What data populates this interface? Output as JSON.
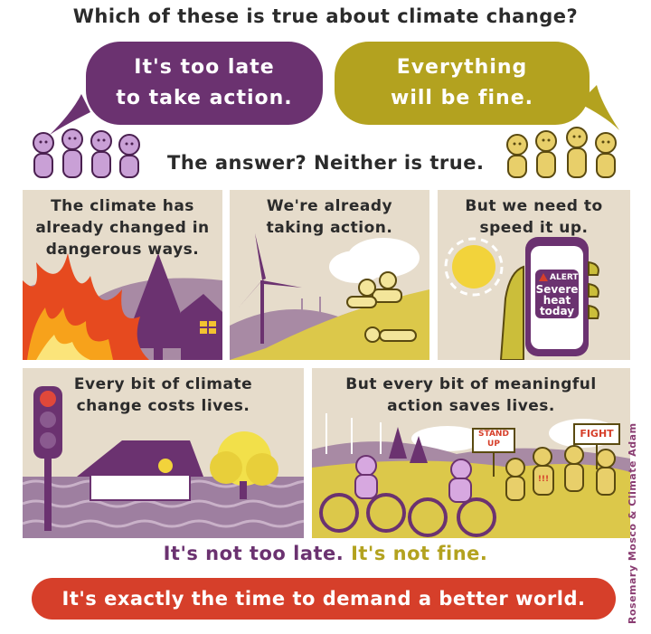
{
  "title": "Which of these is true about climate change?",
  "bubble_left": {
    "line1": "It's too late",
    "line2": "to take action."
  },
  "bubble_right": {
    "line1": "Everything",
    "line2": "will be fine."
  },
  "answer": "The answer? Neither is true.",
  "panels": [
    {
      "lines": [
        "The climate has",
        "already changed in",
        "dangerous ways."
      ]
    },
    {
      "lines": [
        "We're already",
        "taking action."
      ]
    },
    {
      "lines": [
        "But we need to",
        "speed it up."
      ],
      "phone": {
        "alert": "ALERT",
        "line1": "Severe",
        "line2": "heat",
        "line3": "today"
      }
    },
    {
      "lines": [
        "Every bit of climate",
        "change costs lives."
      ]
    },
    {
      "lines": [
        "But every bit of meaningful",
        "action saves lives."
      ],
      "signs": {
        "stand1": "STAND",
        "stand2": "UP",
        "fight": "FIGHT",
        "shirt": "!!!"
      }
    }
  ],
  "bottom": {
    "part1": "It's not too late.",
    "part2": "It's not fine."
  },
  "cta": "It's exactly the time to demand a better world.",
  "credit": "Rosemary Mosco & Climate Adam",
  "colors": {
    "purple": "#6b3270",
    "olive": "#b3a21f",
    "red": "#d63f2a",
    "panel": "#e6dccb"
  }
}
